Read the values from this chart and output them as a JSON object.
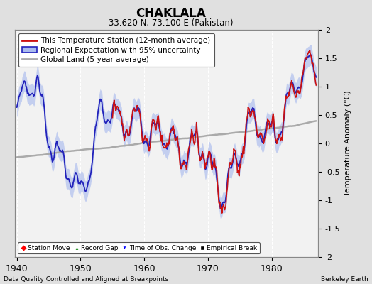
{
  "title": "CHAKLALA",
  "subtitle": "33.620 N, 73.100 E (Pakistan)",
  "xlabel_bottom": "Data Quality Controlled and Aligned at Breakpoints",
  "xlabel_right": "Berkeley Earth",
  "ylabel": "Temperature Anomaly (°C)",
  "year_start": 1940,
  "year_end": 1987,
  "ylim": [
    -2,
    2
  ],
  "yticks": [
    -2,
    -1.5,
    -1,
    -0.5,
    0,
    0.5,
    1,
    1.5,
    2
  ],
  "xticks": [
    1940,
    1950,
    1960,
    1970,
    1980
  ],
  "bg_color": "#e0e0e0",
  "plot_bg_color": "#f2f2f2",
  "grid_color": "#ffffff",
  "regional_color": "#2222bb",
  "regional_fill_color": "#aabbee",
  "station_color": "#cc1111",
  "global_color": "#aaaaaa",
  "legend_fontsize": 7.5,
  "title_fontsize": 12,
  "subtitle_fontsize": 8.5,
  "station_start_year": 1955
}
